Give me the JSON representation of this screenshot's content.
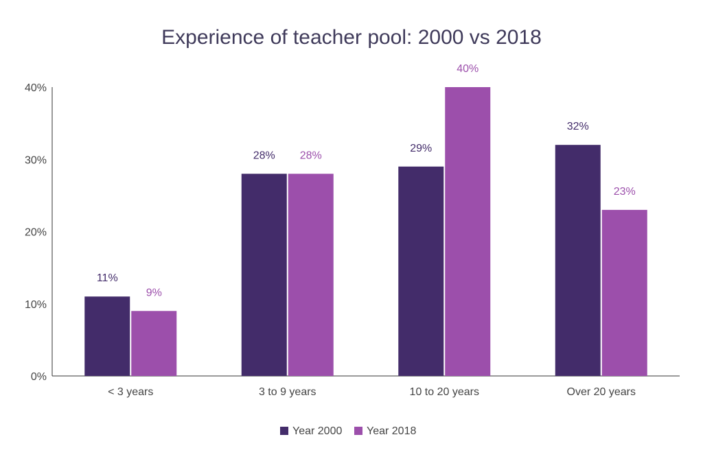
{
  "chart_data": {
    "type": "bar",
    "title": "Experience of teacher pool: 2000 vs 2018",
    "xlabel": "",
    "ylabel": "",
    "ylim": [
      0,
      40
    ],
    "yticks": [
      0,
      10,
      20,
      30,
      40
    ],
    "ytick_labels": [
      "0%",
      "10%",
      "20%",
      "30%",
      "40%"
    ],
    "categories": [
      "< 3 years",
      "3 to 9 years",
      "10 to 20 years",
      "Over 20 years"
    ],
    "series": [
      {
        "name": "Year 2000",
        "color": "#432c6a",
        "values": [
          11,
          28,
          29,
          32
        ],
        "labels": [
          "11%",
          "28%",
          "29%",
          "32%"
        ]
      },
      {
        "name": "Year 2018",
        "color": "#9c4fab",
        "values": [
          9,
          28,
          40,
          23
        ],
        "labels": [
          "9%",
          "28%",
          "40%",
          "23%"
        ]
      }
    ],
    "grid": false,
    "legend_position": "bottom-center"
  }
}
